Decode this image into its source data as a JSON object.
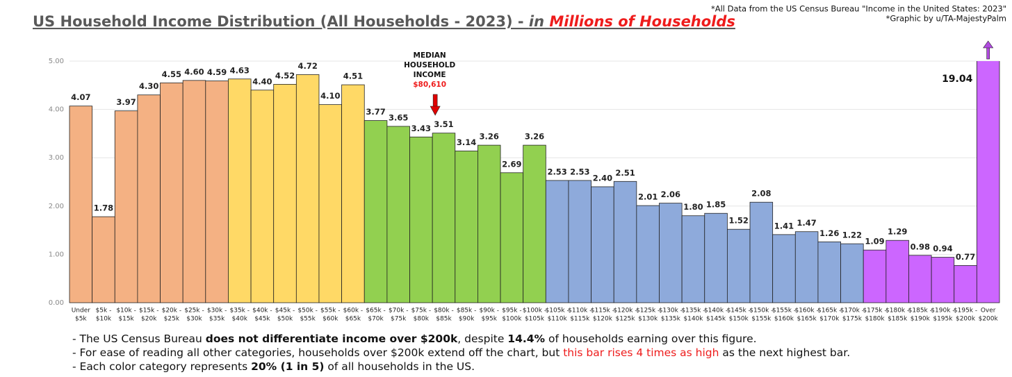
{
  "chart_data": {
    "type": "bar",
    "title_parts": [
      {
        "text": "US Household Income Distribution (All Households - 2023) - "
      },
      {
        "text": "in",
        "italic": true
      },
      {
        "text": " Millions of Households",
        "italic": true,
        "color": "#ee1c1c"
      }
    ],
    "source_notes": [
      "*All Data from the US Census Bureau \"Income in the United States: 2023\"",
      "*Graphic by u/TA-MajestyPalm"
    ],
    "annotation": {
      "lines": [
        "MEDIAN",
        "HOUSEHOLD",
        "INCOME"
      ],
      "value_text": "$80,610",
      "category_index": 16
    },
    "categories": [
      [
        "Under",
        "$5k"
      ],
      [
        "$5k -",
        "$10k"
      ],
      [
        "$10k -",
        "$15k"
      ],
      [
        "$15k -",
        "$20k"
      ],
      [
        "$20k -",
        "$25k"
      ],
      [
        "$25k -",
        "$30k"
      ],
      [
        "$30k -",
        "$35k"
      ],
      [
        "$35k -",
        "$40k"
      ],
      [
        "$40k -",
        "$45k"
      ],
      [
        "$45k -",
        "$50k"
      ],
      [
        "$50k -",
        "$55k"
      ],
      [
        "$55k -",
        "$60k"
      ],
      [
        "$60k -",
        "$65k"
      ],
      [
        "$65k -",
        "$70k"
      ],
      [
        "$70k -",
        "$75k"
      ],
      [
        "$75k -",
        "$80k"
      ],
      [
        "$80k -",
        "$85k"
      ],
      [
        "$85k -",
        "$90k"
      ],
      [
        "$90k -",
        "$95k"
      ],
      [
        "$95k -",
        "$100k"
      ],
      [
        "$100k -",
        "$105k"
      ],
      [
        "$105k -",
        "$110k"
      ],
      [
        "$110k -",
        "$115k"
      ],
      [
        "$115k -",
        "$120k"
      ],
      [
        "$120k -",
        "$125k"
      ],
      [
        "$125k -",
        "$130k"
      ],
      [
        "$130k -",
        "$135k"
      ],
      [
        "$135k -",
        "$140k"
      ],
      [
        "$140k -",
        "$145k"
      ],
      [
        "$145k -",
        "$150k"
      ],
      [
        "$150k -",
        "$155k"
      ],
      [
        "$155k -",
        "$160k"
      ],
      [
        "$160k -",
        "$165k"
      ],
      [
        "$165k -",
        "$170k"
      ],
      [
        "$170k -",
        "$175k"
      ],
      [
        "$175k -",
        "$180k"
      ],
      [
        "$180k -",
        "$185k"
      ],
      [
        "$185k -",
        "$190k"
      ],
      [
        "$190k -",
        "$195k"
      ],
      [
        "$195k -",
        "$200k"
      ],
      [
        "Over",
        "$200k"
      ]
    ],
    "values": [
      4.07,
      1.78,
      3.97,
      4.3,
      4.55,
      4.6,
      4.59,
      4.63,
      4.4,
      4.52,
      4.72,
      4.1,
      4.51,
      3.77,
      3.65,
      3.43,
      3.51,
      3.14,
      3.26,
      2.69,
      3.26,
      2.53,
      2.53,
      2.4,
      2.51,
      2.01,
      2.06,
      1.8,
      1.85,
      1.52,
      2.08,
      1.41,
      1.47,
      1.26,
      1.22,
      1.09,
      1.29,
      0.98,
      0.94,
      0.77,
      19.04
    ],
    "value_labels": [
      "4.07",
      "1.78",
      "3.97",
      "4.30",
      "4.55",
      "4.60",
      "4.59",
      "4.63",
      "4.40",
      "4.52",
      "4.72",
      "4.10",
      "4.51",
      "3.77",
      "3.65",
      "3.43",
      "3.51",
      "3.14",
      "3.26",
      "2.69",
      "3.26",
      "2.53",
      "2.53",
      "2.40",
      "2.51",
      "2.01",
      "2.06",
      "1.80",
      "1.85",
      "1.52",
      "2.08",
      "1.41",
      "1.47",
      "1.26",
      "1.22",
      "1.09",
      "1.29",
      "0.98",
      "0.94",
      "0.77",
      "19.04"
    ],
    "colors": [
      "#f4b183",
      "#f4b183",
      "#f4b183",
      "#f4b183",
      "#f4b183",
      "#f4b183",
      "#f4b183",
      "#ffd966",
      "#ffd966",
      "#ffd966",
      "#ffd966",
      "#ffd966",
      "#ffd966",
      "#92d050",
      "#92d050",
      "#92d050",
      "#92d050",
      "#92d050",
      "#92d050",
      "#92d050",
      "#92d050",
      "#8eaadb",
      "#8eaadb",
      "#8eaadb",
      "#8eaadb",
      "#8eaadb",
      "#8eaadb",
      "#8eaadb",
      "#8eaadb",
      "#8eaadb",
      "#8eaadb",
      "#8eaadb",
      "#8eaadb",
      "#8eaadb",
      "#8eaadb",
      "#cc66ff",
      "#cc66ff",
      "#cc66ff",
      "#cc66ff",
      "#cc66ff",
      "#cc66ff"
    ],
    "ylim": [
      0,
      5
    ],
    "yticks": [
      {
        "value": 0,
        "label": "0.00"
      },
      {
        "value": 1,
        "label": "1.00"
      },
      {
        "value": 2,
        "label": "2.00"
      },
      {
        "value": 3,
        "label": "3.00"
      },
      {
        "value": 4,
        "label": "4.00"
      },
      {
        "value": 5,
        "label": "5.00"
      }
    ],
    "grid": true,
    "notes": [
      [
        {
          "text": "- The US Census Bureau "
        },
        {
          "text": "does not differentiate income over $200k",
          "bold": true
        },
        {
          "text": ", despite "
        },
        {
          "text": "14.4%",
          "bold": true
        },
        {
          "text": " of households earning over this figure."
        }
      ],
      [
        {
          "text": "- For ease of reading all other categories, households over $200k extend off the chart, but "
        },
        {
          "text": "this bar rises 4 times as high",
          "color": "#ee1c1c"
        },
        {
          "text": " as the next highest bar."
        }
      ],
      [
        {
          "text": "- Each color category represents "
        },
        {
          "text": "20% (1 in 5)",
          "bold": true
        },
        {
          "text": " of all households in the US."
        }
      ]
    ]
  }
}
